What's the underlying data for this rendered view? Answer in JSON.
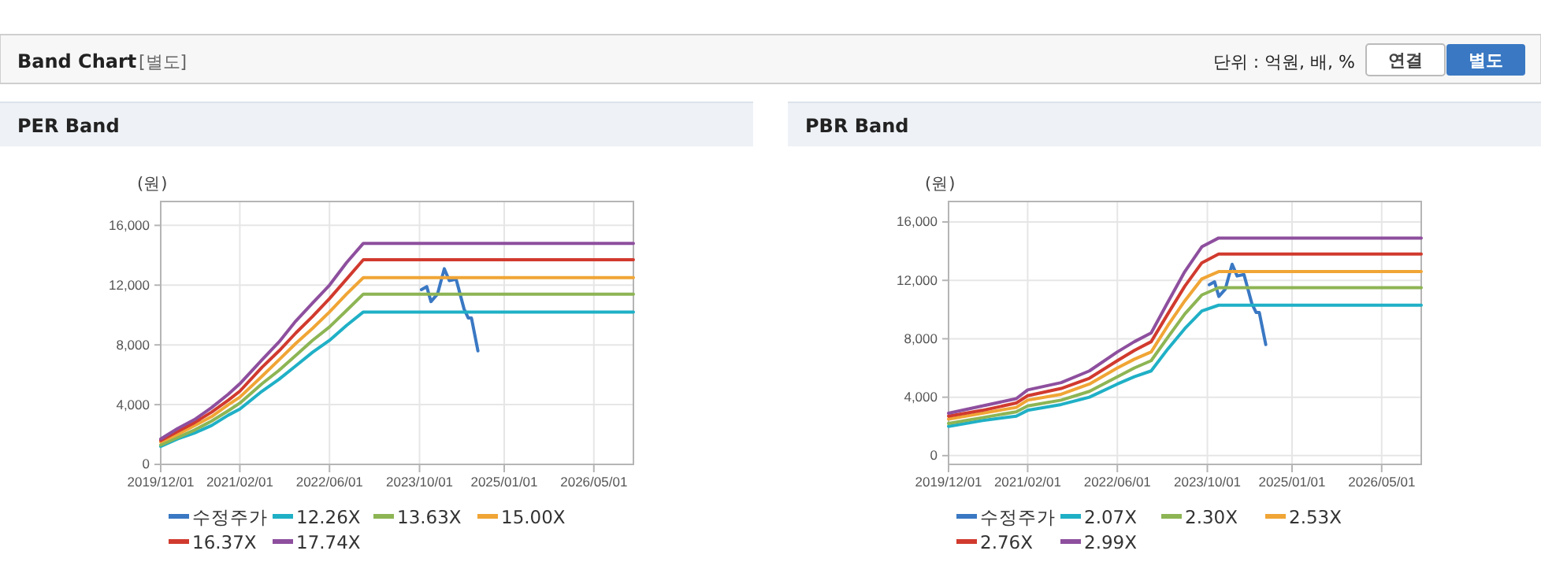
{
  "chart_data": [
    {
      "type": "line",
      "title": "PER Band",
      "ylabel": "(원)",
      "annotations": [
        "Band Chart",
        "[별도]",
        "단위 : 억원, 배, %",
        "연결",
        "별도"
      ],
      "xlim": [
        "2019-12-01",
        "2026-12-01"
      ],
      "ylim": [
        0,
        17600
      ],
      "xticks": [
        {
          "value": "2019-12-01",
          "label": "2019/12/01"
        },
        {
          "value": "2021-02-01",
          "label": "2021/02/01"
        },
        {
          "value": "2022-06-01",
          "label": "2022/06/01"
        },
        {
          "value": "2023-10-01",
          "label": "2023/10/01"
        },
        {
          "value": "2025-01-01",
          "label": "2025/01/01"
        },
        {
          "value": "2026-05-01",
          "label": "2026/05/01"
        }
      ],
      "yticks": [
        0,
        {
          "value": 4000,
          "label": "4,000"
        },
        {
          "value": 8000,
          "label": "8,000"
        },
        {
          "value": 12000,
          "label": "12,000"
        },
        {
          "value": 16000,
          "label": "16,000"
        }
      ],
      "grid": true,
      "legend": "bottom",
      "marker": "none",
      "line_style": "solid",
      "series": [
        {
          "name": "수정주가",
          "color": "#3a78c3",
          "x": [
            "2023-10-11",
            "2023-11-09",
            "2023-12-02",
            "2024-01-06",
            "2024-02-12",
            "2024-03-10",
            "2024-04-16",
            "2024-05-29",
            "2024-06-21",
            "2024-07-08",
            "2024-08-12"
          ],
          "values": [
            11700,
            11900,
            10900,
            11400,
            13100,
            12300,
            12400,
            10400,
            9800,
            9800,
            7600
          ]
        },
        {
          "name": "12.26X",
          "color": "#1fb0c6",
          "x": [
            "2019-12-01",
            "2020-03-01",
            "2020-06-01",
            "2020-09-01",
            "2020-12-01",
            "2021-02-01",
            "2021-06-01",
            "2021-09-01",
            "2021-12-01",
            "2022-03-01",
            "2022-06-01",
            "2022-09-01",
            "2022-12-01",
            "2026-12-01"
          ],
          "values": [
            1200,
            1700,
            2100,
            2600,
            3300,
            3700,
            4900,
            5700,
            6600,
            7500,
            8300,
            9300,
            10200,
            10200
          ]
        },
        {
          "name": "13.63X",
          "color": "#8db554",
          "x": [
            "2019-12-01",
            "2020-03-01",
            "2020-06-01",
            "2020-09-01",
            "2020-12-01",
            "2021-02-01",
            "2021-06-01",
            "2021-09-01",
            "2021-12-01",
            "2022-03-01",
            "2022-06-01",
            "2022-09-01",
            "2022-12-01",
            "2026-12-01"
          ],
          "values": [
            1300,
            1800,
            2300,
            2900,
            3600,
            4100,
            5400,
            6300,
            7300,
            8300,
            9200,
            10300,
            11400,
            11400
          ]
        },
        {
          "name": "15.00X",
          "color": "#f0a535",
          "x": [
            "2019-12-01",
            "2020-03-01",
            "2020-06-01",
            "2020-09-01",
            "2020-12-01",
            "2021-02-01",
            "2021-06-01",
            "2021-09-01",
            "2021-12-01",
            "2022-03-01",
            "2022-06-01",
            "2022-09-01",
            "2022-12-01",
            "2026-12-01"
          ],
          "values": [
            1500,
            2000,
            2600,
            3200,
            4000,
            4500,
            5900,
            7000,
            8100,
            9100,
            10200,
            11400,
            12500,
            12500
          ]
        },
        {
          "name": "16.37X",
          "color": "#d13a2e",
          "x": [
            "2019-12-01",
            "2020-03-01",
            "2020-06-01",
            "2020-09-01",
            "2020-12-01",
            "2021-02-01",
            "2021-06-01",
            "2021-09-01",
            "2021-12-01",
            "2022-03-01",
            "2022-06-01",
            "2022-09-01",
            "2022-12-01",
            "2026-12-01"
          ],
          "values": [
            1600,
            2200,
            2800,
            3500,
            4300,
            4900,
            6500,
            7600,
            8800,
            9900,
            11100,
            12400,
            13700,
            13700
          ]
        },
        {
          "name": "17.74X",
          "color": "#8e4f9e",
          "x": [
            "2019-12-01",
            "2020-03-01",
            "2020-06-01",
            "2020-09-01",
            "2020-12-01",
            "2021-02-01",
            "2021-06-01",
            "2021-09-01",
            "2021-12-01",
            "2022-03-01",
            "2022-06-01",
            "2022-09-01",
            "2022-12-01",
            "2026-12-01"
          ],
          "values": [
            1700,
            2400,
            3000,
            3800,
            4700,
            5400,
            7000,
            8200,
            9600,
            10800,
            12000,
            13500,
            14800,
            14800
          ]
        }
      ]
    },
    {
      "type": "line",
      "title": "PBR Band",
      "ylabel": "(원)",
      "xlim": [
        "2019-12-01",
        "2026-12-01"
      ],
      "ylim": [
        -600,
        17400
      ],
      "xticks": [
        {
          "value": "2019-12-01",
          "label": "2019/12/01"
        },
        {
          "value": "2021-02-01",
          "label": "2021/02/01"
        },
        {
          "value": "2022-06-01",
          "label": "2022/06/01"
        },
        {
          "value": "2023-10-01",
          "label": "2023/10/01"
        },
        {
          "value": "2025-01-01",
          "label": "2025/01/01"
        },
        {
          "value": "2026-05-01",
          "label": "2026/05/01"
        }
      ],
      "yticks": [
        0,
        {
          "value": 4000,
          "label": "4,000"
        },
        {
          "value": 8000,
          "label": "8,000"
        },
        {
          "value": 12000,
          "label": "12,000"
        },
        {
          "value": 16000,
          "label": "16,000"
        }
      ],
      "grid": true,
      "legend": "bottom",
      "marker": "none",
      "line_style": "solid",
      "series": [
        {
          "name": "수정주가",
          "color": "#3a78c3",
          "x": [
            "2023-10-11",
            "2023-11-09",
            "2023-12-02",
            "2024-01-06",
            "2024-02-12",
            "2024-03-10",
            "2024-04-16",
            "2024-05-29",
            "2024-06-21",
            "2024-07-08",
            "2024-08-12"
          ],
          "values": [
            11700,
            11900,
            10900,
            11400,
            13100,
            12300,
            12400,
            10400,
            9800,
            9800,
            7600
          ]
        },
        {
          "name": "2.07X",
          "color": "#1fb0c6",
          "x": [
            "2019-12-01",
            "2020-06-01",
            "2020-12-01",
            "2021-02-01",
            "2021-08-01",
            "2022-01-01",
            "2022-06-01",
            "2022-09-01",
            "2022-12-01",
            "2023-03-01",
            "2023-06-01",
            "2023-09-01",
            "2023-12-01",
            "2026-12-01"
          ],
          "values": [
            2000,
            2400,
            2700,
            3100,
            3500,
            4000,
            4900,
            5400,
            5800,
            7300,
            8700,
            9900,
            10300,
            10300
          ]
        },
        {
          "name": "2.30X",
          "color": "#8db554",
          "x": [
            "2019-12-01",
            "2020-06-01",
            "2020-12-01",
            "2021-02-01",
            "2021-08-01",
            "2022-01-01",
            "2022-06-01",
            "2022-09-01",
            "2022-12-01",
            "2023-03-01",
            "2023-06-01",
            "2023-09-01",
            "2023-12-01",
            "2026-12-01"
          ],
          "values": [
            2200,
            2600,
            3000,
            3400,
            3800,
            4400,
            5400,
            6000,
            6500,
            8100,
            9700,
            11000,
            11500,
            11500
          ]
        },
        {
          "name": "2.53X",
          "color": "#f0a535",
          "x": [
            "2019-12-01",
            "2020-06-01",
            "2020-12-01",
            "2021-02-01",
            "2021-08-01",
            "2022-01-01",
            "2022-06-01",
            "2022-09-01",
            "2022-12-01",
            "2023-03-01",
            "2023-06-01",
            "2023-09-01",
            "2023-12-01",
            "2026-12-01"
          ],
          "values": [
            2500,
            2900,
            3300,
            3800,
            4200,
            4900,
            6000,
            6600,
            7100,
            8900,
            10600,
            12100,
            12600,
            12600
          ]
        },
        {
          "name": "2.76X",
          "color": "#d13a2e",
          "x": [
            "2019-12-01",
            "2020-06-01",
            "2020-12-01",
            "2021-02-01",
            "2021-08-01",
            "2022-01-01",
            "2022-06-01",
            "2022-09-01",
            "2022-12-01",
            "2023-03-01",
            "2023-06-01",
            "2023-09-01",
            "2023-12-01",
            "2026-12-01"
          ],
          "values": [
            2700,
            3100,
            3600,
            4100,
            4600,
            5300,
            6500,
            7200,
            7800,
            9700,
            11600,
            13200,
            13800,
            13800
          ]
        },
        {
          "name": "2.99X",
          "color": "#8e4f9e",
          "x": [
            "2019-12-01",
            "2020-06-01",
            "2020-12-01",
            "2021-02-01",
            "2021-08-01",
            "2022-01-01",
            "2022-06-01",
            "2022-09-01",
            "2022-12-01",
            "2023-03-01",
            "2023-06-01",
            "2023-09-01",
            "2023-12-01",
            "2026-12-01"
          ],
          "values": [
            2900,
            3400,
            3900,
            4500,
            5000,
            5800,
            7100,
            7800,
            8400,
            10500,
            12600,
            14300,
            14900,
            14900
          ]
        }
      ]
    }
  ]
}
